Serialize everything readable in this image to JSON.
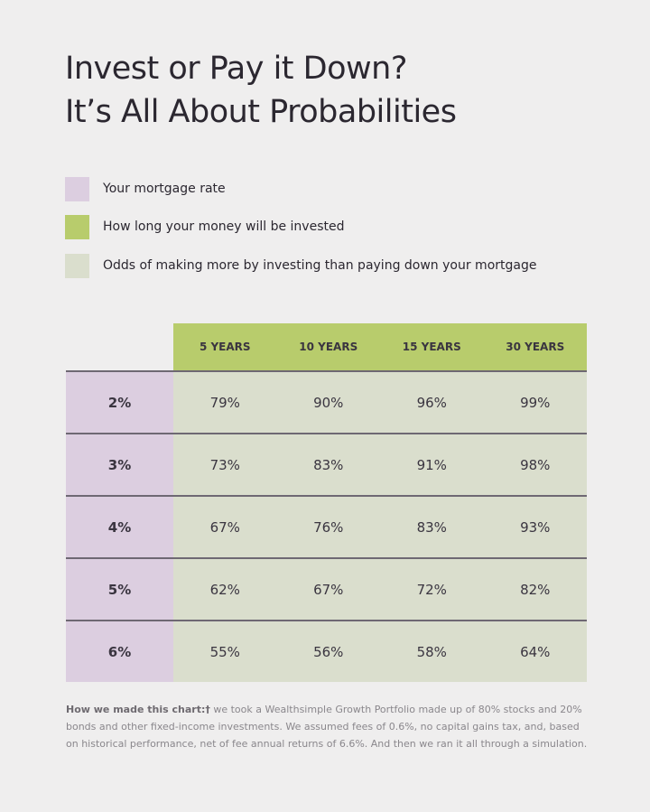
{
  "title_lines": [
    "Invest or Pay it Down?",
    "It’s All About Probabilities"
  ],
  "legend": [
    {
      "label": "Your mortgage rate",
      "color": "#dccee0"
    },
    {
      "label": "How long your money will be invested",
      "color": "#b8cc6c"
    },
    {
      "label": "Odds of making more by investing than paying down your mortgage",
      "color": "#dadecd"
    }
  ],
  "chart_data": {
    "type": "table",
    "columns": [
      "5 YEARS",
      "10 YEARS",
      "15 YEARS",
      "30 YEARS"
    ],
    "rows": [
      {
        "rate": "2%",
        "values": [
          "79%",
          "90%",
          "96%",
          "99%"
        ]
      },
      {
        "rate": "3%",
        "values": [
          "73%",
          "83%",
          "91%",
          "98%"
        ]
      },
      {
        "rate": "4%",
        "values": [
          "67%",
          "76%",
          "83%",
          "93%"
        ]
      },
      {
        "rate": "5%",
        "values": [
          "62%",
          "67%",
          "72%",
          "82%"
        ]
      },
      {
        "rate": "6%",
        "values": [
          "55%",
          "56%",
          "58%",
          "64%"
        ]
      }
    ]
  },
  "note": {
    "lead": "How we made this chart:†",
    "text": " we took a Wealthsimple Growth Portfolio made up of 80% stocks and 20% bonds and other fixed-income investments. We assumed fees of 0.6%, no capital gains tax, and, based on historical performance, net of fee annual returns of 6.6%. And then we ran it all through a simulation."
  }
}
